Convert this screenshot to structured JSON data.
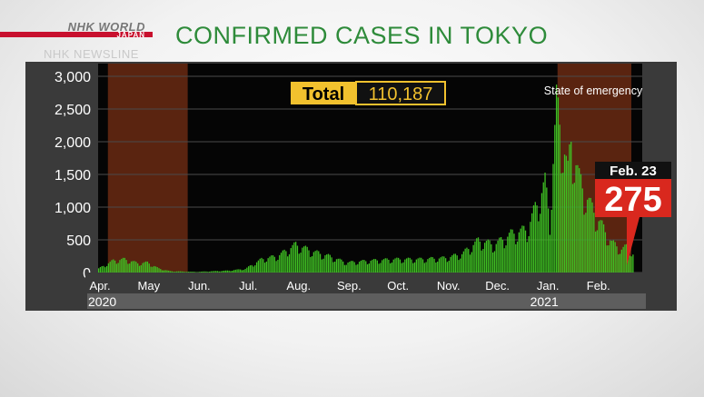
{
  "header": {
    "logo_text": "NHK WORLD",
    "logo_sub": "JAPAN",
    "program": "NHK NEWSLINE",
    "title": "CONFIRMED CASES IN TOKYO"
  },
  "total_label": "Total",
  "total_value": "110,187",
  "emergency_label": "State of emergency",
  "callout": {
    "date": "Feb. 23",
    "value": "275"
  },
  "years": [
    "2020",
    "2021"
  ],
  "colors": {
    "bars": "#3fbf23",
    "emergency": "#5a2410",
    "callout": "#d9281e",
    "total_box": "#f2c12e",
    "title": "#2e8b3a"
  },
  "chart_data": {
    "type": "bar",
    "ylim": [
      0,
      3000
    ],
    "yticks": [
      0,
      500,
      1000,
      1500,
      2000,
      2500,
      3000
    ],
    "ytick_labels": [
      "0",
      "500",
      "1,000",
      "1,500",
      "2,000",
      "2,500",
      "3,000"
    ],
    "month_labels": [
      "Apr.",
      "May",
      "Jun.",
      "Jul.",
      "Aug.",
      "Sep.",
      "Oct.",
      "Nov.",
      "Dec.",
      "Jan.",
      "Feb."
    ],
    "x_start": "2020-04-01",
    "x_end": "2021-02-28",
    "emergency_periods": [
      [
        "2020-04-07",
        "2020-05-25"
      ],
      [
        "2021-01-08",
        "2021-02-23"
      ]
    ],
    "anchors": [
      [
        "2020-04-01",
        60
      ],
      [
        "2020-04-10",
        180
      ],
      [
        "2020-04-17",
        200
      ],
      [
        "2020-04-25",
        140
      ],
      [
        "2020-05-01",
        150
      ],
      [
        "2020-05-08",
        60
      ],
      [
        "2020-05-15",
        20
      ],
      [
        "2020-05-31",
        10
      ],
      [
        "2020-06-20",
        30
      ],
      [
        "2020-06-30",
        55
      ],
      [
        "2020-07-10",
        200
      ],
      [
        "2020-07-20",
        250
      ],
      [
        "2020-07-31",
        420
      ],
      [
        "2020-08-10",
        320
      ],
      [
        "2020-08-20",
        250
      ],
      [
        "2020-08-31",
        150
      ],
      [
        "2020-09-15",
        180
      ],
      [
        "2020-09-30",
        200
      ],
      [
        "2020-10-15",
        200
      ],
      [
        "2020-10-31",
        220
      ],
      [
        "2020-11-10",
        280
      ],
      [
        "2020-11-20",
        480
      ],
      [
        "2020-11-30",
        420
      ],
      [
        "2020-12-10",
        580
      ],
      [
        "2020-12-20",
        650
      ],
      [
        "2020-12-31",
        1340
      ],
      [
        "2021-01-03",
        800
      ],
      [
        "2021-01-07",
        2520
      ],
      [
        "2021-01-09",
        2260
      ],
      [
        "2021-01-14",
        1500
      ],
      [
        "2021-01-16",
        2000
      ],
      [
        "2021-01-21",
        1400
      ],
      [
        "2021-01-28",
        1000
      ],
      [
        "2021-02-04",
        700
      ],
      [
        "2021-02-10",
        450
      ],
      [
        "2021-02-16",
        350
      ],
      [
        "2021-02-20",
        400
      ],
      [
        "2021-02-23",
        275
      ]
    ]
  }
}
